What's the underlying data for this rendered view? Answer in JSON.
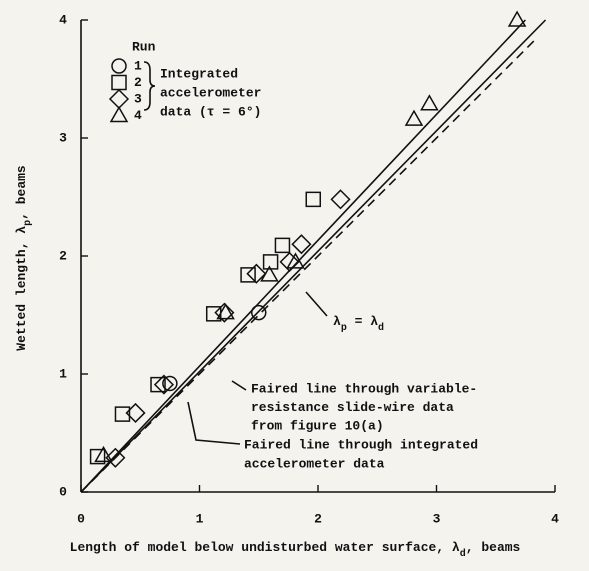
{
  "chart_data": {
    "type": "scatter",
    "xlabel_parts": [
      "Length of model below undisturbed water surface, λ",
      "d",
      ", beams"
    ],
    "ylabel_parts": [
      "Wetted length, λ",
      "p",
      ", beams"
    ],
    "xlim": [
      0,
      4
    ],
    "ylim": [
      0,
      4
    ],
    "xticks": [
      0,
      1,
      2,
      3,
      4
    ],
    "yticks": [
      0,
      1,
      2,
      3,
      4
    ],
    "legend_title": "Run",
    "legend_note": [
      "Integrated",
      "accelerometer",
      "data (τ = 6°)"
    ],
    "color": "#111111",
    "series": [
      {
        "name": "1",
        "marker": "circle",
        "x": [
          0.75,
          1.5
        ],
        "y": [
          0.92,
          1.52
        ]
      },
      {
        "name": "2",
        "marker": "square",
        "x": [
          0.14,
          0.35,
          0.65,
          1.12,
          1.41,
          1.6,
          1.7,
          1.96
        ],
        "y": [
          0.3,
          0.66,
          0.91,
          1.51,
          1.84,
          1.95,
          2.09,
          2.48
        ]
      },
      {
        "name": "3",
        "marker": "diamond",
        "x": [
          0.29,
          0.46,
          0.7,
          1.21,
          1.48,
          1.76,
          1.86,
          2.19
        ],
        "y": [
          0.29,
          0.67,
          0.91,
          1.52,
          1.85,
          1.95,
          2.1,
          2.48
        ]
      },
      {
        "name": "4",
        "marker": "triangle",
        "x": [
          0.19,
          1.22,
          1.59,
          1.81,
          2.81,
          2.94,
          3.68
        ],
        "y": [
          0.31,
          1.52,
          1.84,
          1.95,
          3.16,
          3.29,
          4.0
        ]
      }
    ],
    "lines": [
      {
        "style": "solid",
        "x": [
          0,
          3.75
        ],
        "y": [
          0,
          4
        ]
      },
      {
        "style": "solid",
        "x": [
          0,
          3.92
        ],
        "y": [
          0,
          4
        ]
      },
      {
        "style": "dashed",
        "x": [
          0,
          3.85
        ],
        "y": [
          0,
          3.85
        ]
      }
    ],
    "annotations": [
      {
        "parts": [
          "λ",
          "p",
          " = λ",
          "d"
        ]
      },
      {
        "lines": [
          "Faired line through variable-",
          "resistance slide-wire data",
          "from figure 10(a)"
        ]
      },
      {
        "lines": [
          "Faired line through integrated",
          "accelerometer data"
        ]
      }
    ]
  }
}
